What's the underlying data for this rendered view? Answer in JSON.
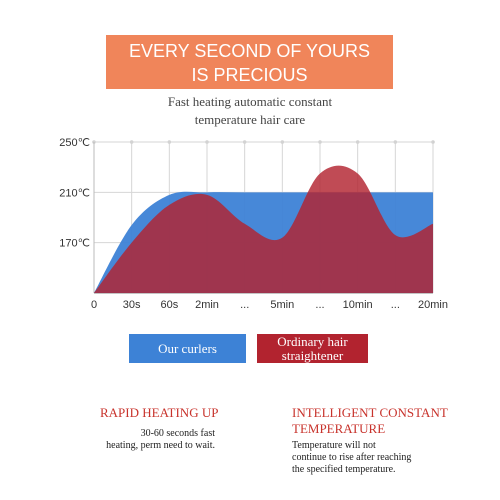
{
  "header": {
    "banner_line1": "EVERY SECOND OF YOURS",
    "banner_line2": "IS PRECIOUS",
    "subtitle_line1": "Fast heating automatic constant",
    "subtitle_line2": "temperature hair care"
  },
  "chart_data": {
    "type": "area",
    "x_ticks": [
      "0",
      "30s",
      "60s",
      "2min",
      "...",
      "5min",
      "...",
      "10min",
      "...",
      "20min"
    ],
    "y_ticks": [
      "250℃",
      "210℃",
      "170℃"
    ],
    "y_tick_values": [
      250,
      210,
      170
    ],
    "ylim": [
      130,
      250
    ],
    "grid": true,
    "legend_position": "bottom",
    "series": [
      {
        "name": "Our curlers",
        "color": "#3d82d6",
        "values": [
          130,
          184,
          208,
          210,
          210,
          210,
          210,
          210,
          210,
          210
        ]
      },
      {
        "name": "Ordinary hair straightener",
        "color": "#b2232f",
        "values": [
          130,
          170,
          200,
          208,
          185,
          174,
          225,
          225,
          176,
          185
        ]
      }
    ]
  },
  "legend": {
    "ours": "Our curlers",
    "ordinary_line1": "Ordinary hair",
    "ordinary_line2": "straightener"
  },
  "features": {
    "left_title": "RAPID HEATING UP",
    "left_text_line1": "30-60 seconds fast",
    "left_text_line2": "heating, perm need to wait.",
    "right_title_line1": "INTELLIGENT CONSTANT",
    "right_title_line2": "TEMPERATURE",
    "right_text_line1": "Temperature will not",
    "right_text_line2": "continue to rise after reaching",
    "right_text_line3": "the specified temperature."
  }
}
